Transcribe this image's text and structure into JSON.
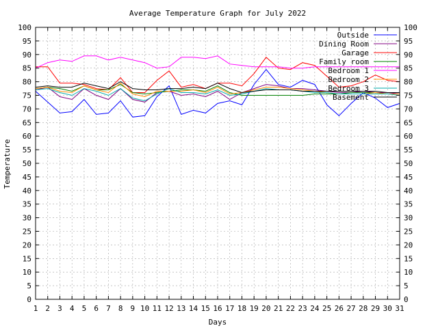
{
  "chart_data": {
    "type": "line",
    "title": "Average Temperature Graph for July 2022",
    "xlabel": "Days",
    "ylabel": "Temperature",
    "xlim": [
      1,
      31
    ],
    "ylim": [
      0,
      100
    ],
    "grid": true,
    "legend": "top-right",
    "x": [
      1,
      2,
      3,
      4,
      5,
      6,
      7,
      8,
      9,
      10,
      11,
      12,
      13,
      14,
      15,
      16,
      17,
      18,
      19,
      20,
      21,
      22,
      23,
      24,
      25,
      26,
      27,
      28,
      29,
      30,
      31
    ],
    "series": [
      {
        "name": "Outside",
        "color": "#0000ff",
        "values": [
          76.5,
          72.5,
          68.5,
          69.0,
          73.5,
          68.0,
          68.5,
          73.0,
          67.0,
          67.5,
          74.5,
          78.5,
          68.0,
          69.5,
          68.5,
          72.0,
          73.0,
          71.5,
          79.0,
          84.5,
          79.0,
          78.0,
          80.5,
          79.0,
          71.5,
          67.5,
          72.0,
          76.0,
          74.0,
          70.5,
          72.0
        ]
      },
      {
        "name": "Dining Room",
        "color": "#800080",
        "values": [
          77.0,
          78.0,
          74.5,
          73.5,
          77.5,
          75.0,
          73.5,
          77.5,
          73.5,
          72.5,
          76.0,
          76.5,
          75.0,
          75.5,
          74.5,
          76.5,
          73.5,
          76.0,
          77.5,
          79.0,
          78.5,
          77.5,
          77.5,
          77.0,
          76.5,
          76.0,
          76.0,
          76.5,
          76.0,
          76.0,
          75.5
        ]
      },
      {
        "name": "Garage",
        "color": "#ff0000",
        "values": [
          85.5,
          85.5,
          79.5,
          79.5,
          79.0,
          77.5,
          77.0,
          81.5,
          76.0,
          76.0,
          80.5,
          84.0,
          78.0,
          79.0,
          77.5,
          79.5,
          79.5,
          78.5,
          83.0,
          89.0,
          85.0,
          84.5,
          87.0,
          86.0,
          82.0,
          78.0,
          78.5,
          80.0,
          82.5,
          80.5,
          80.0
        ]
      },
      {
        "name": "Family room",
        "color": "#008000",
        "values": [
          77.5,
          78.0,
          77.5,
          76.5,
          78.5,
          77.0,
          77.0,
          79.0,
          76.0,
          75.5,
          76.0,
          76.5,
          77.0,
          77.0,
          76.5,
          78.5,
          76.0,
          75.0,
          75.0,
          75.0,
          75.0,
          75.0,
          75.0,
          75.5,
          75.5,
          75.5,
          76.0,
          76.0,
          76.0,
          75.5,
          75.5
        ]
      },
      {
        "name": "Bedroom 1",
        "color": "#ff00ff",
        "values": [
          85.0,
          87.0,
          88.0,
          87.5,
          89.5,
          89.5,
          88.0,
          89.0,
          88.0,
          87.0,
          85.0,
          85.5,
          89.0,
          89.0,
          88.5,
          89.5,
          86.5,
          86.0,
          85.5,
          85.5,
          85.5,
          85.0,
          85.0,
          85.5,
          85.5,
          85.5,
          85.5,
          85.5,
          85.5,
          85.5,
          85.5
        ]
      },
      {
        "name": "Bedroom 2",
        "color": "#ff8c00",
        "values": [
          77.5,
          78.0,
          76.5,
          76.0,
          78.5,
          77.0,
          76.0,
          79.5,
          75.5,
          74.5,
          76.5,
          76.5,
          76.5,
          77.0,
          76.0,
          78.0,
          75.5,
          76.0,
          77.0,
          78.0,
          78.0,
          77.5,
          77.0,
          76.5,
          76.0,
          75.5,
          75.5,
          75.5,
          76.0,
          75.5,
          75.5
        ]
      },
      {
        "name": "Bedroom 3",
        "color": "#00aaaa",
        "values": [
          77.0,
          77.5,
          76.0,
          75.0,
          77.5,
          76.5,
          75.0,
          77.5,
          74.0,
          73.0,
          75.5,
          77.5,
          76.0,
          76.0,
          75.5,
          77.0,
          75.0,
          75.5,
          76.5,
          77.5,
          77.0,
          77.0,
          76.5,
          76.0,
          76.0,
          75.5,
          75.5,
          75.5,
          75.5,
          75.5,
          75.0
        ]
      },
      {
        "name": "Basement",
        "color": "#000000",
        "values": [
          78.0,
          78.5,
          78.0,
          78.0,
          79.5,
          78.5,
          77.5,
          80.0,
          77.5,
          77.0,
          77.0,
          77.5,
          77.5,
          78.0,
          77.5,
          79.5,
          77.5,
          76.0,
          76.5,
          77.0,
          77.0,
          77.0,
          76.5,
          76.5,
          76.5,
          76.5,
          76.5,
          76.5,
          76.5,
          76.0,
          76.0
        ]
      }
    ]
  }
}
